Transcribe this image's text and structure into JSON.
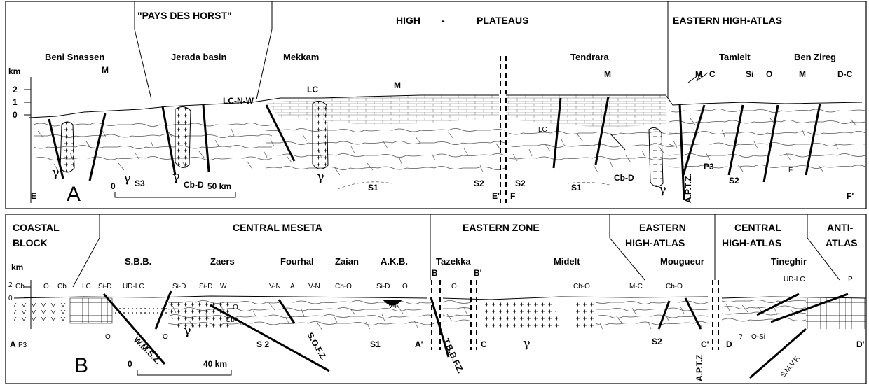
{
  "panel_a": {
    "letter": "A",
    "headers": [
      "\"PAYS DES HORST\"",
      "HIGH",
      "-",
      "PLATEAUS",
      "EASTERN HIGH-ATLAS"
    ],
    "regions": [
      "Beni Snassen",
      "Jerada basin",
      "Mekkam",
      "Tendrara",
      "Tamlelt",
      "Ben Zireg"
    ],
    "axis": {
      "unit": "km",
      "ticks": [
        "2",
        "1",
        "0"
      ]
    },
    "section_ends": [
      "E",
      "E'",
      "F",
      "F'"
    ],
    "scale": {
      "start": "0",
      "end": "50 km"
    },
    "units": [
      "M",
      "LC-N-W",
      "LC",
      "M",
      "M",
      "M",
      "C",
      "Si",
      "O",
      "M",
      "D-C",
      "LC",
      "P3",
      "Cb-D",
      "Cb-D",
      "γ",
      "γ",
      "γ",
      "γ",
      "γ",
      "S3",
      "S1",
      "S2",
      "S2",
      "S1",
      "S2",
      "F",
      "A.P.T.Z."
    ]
  },
  "panel_b": {
    "letter": "B",
    "headers": [
      "COASTAL",
      "BLOCK",
      "CENTRAL MESETA",
      "EASTERN ZONE",
      "EASTERN",
      "HIGH-ATLAS",
      "CENTRAL",
      "HIGH-ATLAS",
      "ANTI-",
      "ATLAS"
    ],
    "regions": [
      "S.B.B.",
      "Zaers",
      "Fourhal",
      "Zaian",
      "A.K.B.",
      "Tazekka",
      "Midelt",
      "Mougueur",
      "Tineghir"
    ],
    "axis": {
      "unit": "km",
      "ticks": [
        "2",
        "0"
      ]
    },
    "section_ends": [
      "A",
      "A'",
      "B",
      "B'",
      "C",
      "C'",
      "D",
      "D'"
    ],
    "scale": {
      "start": "0",
      "end": "40 km"
    },
    "units": [
      "Cb",
      "O",
      "Cb",
      "LC",
      "Si-D",
      "UD-LC",
      "Si-D",
      "Si-D",
      "W",
      "V-N",
      "A",
      "V-N",
      "Cb-O",
      "Si-D",
      "O",
      "Cb-O",
      "M-C",
      "Cb-O",
      "UD-LC",
      "P",
      "O",
      "O",
      "Cb",
      "V-N",
      "P3",
      "O",
      "O",
      "γ",
      "S 2",
      "S1",
      "γ",
      "S2",
      "?",
      "O-Si",
      "W.M.S.Z.",
      "S.O.F.Z.",
      "T.B.B.F.Z.",
      "A.P.T.Z",
      "S.M.V.F."
    ]
  }
}
